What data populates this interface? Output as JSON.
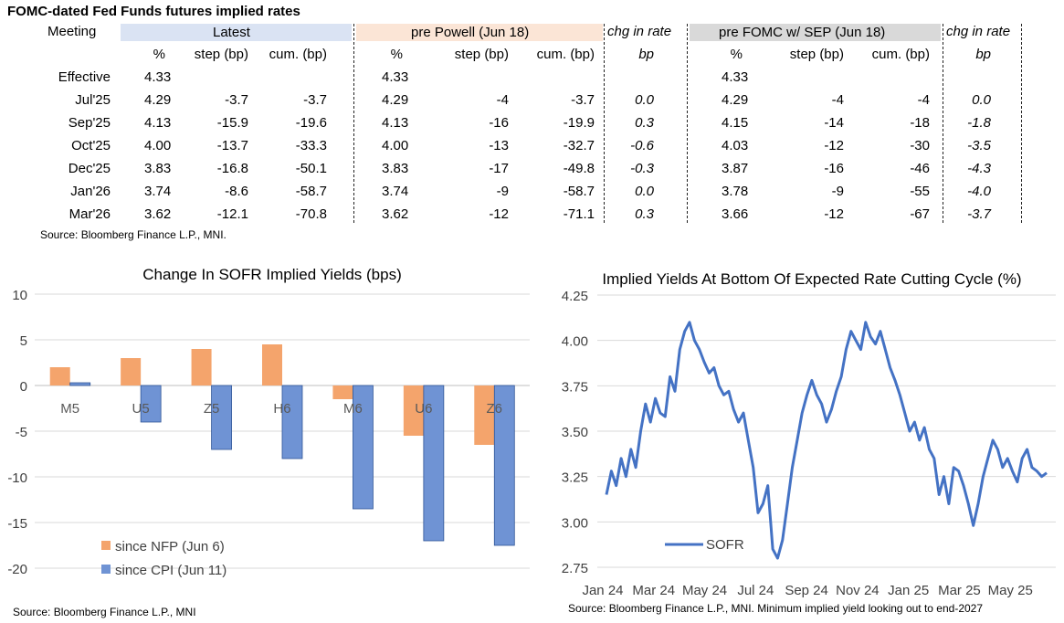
{
  "table": {
    "title": "FOMC-dated Fed Funds futures implied rates",
    "col_meeting": "Meeting",
    "groups": [
      {
        "label": "Latest",
        "color": "#dae3f3"
      },
      {
        "label": "pre Powell (Jun 18)",
        "color": "#fbe5d6"
      },
      {
        "label": "chg in rate",
        "color": "#ffffff"
      },
      {
        "label": "pre FOMC w/ SEP (Jun 18)",
        "color": "#d9d9d9"
      },
      {
        "label": "chg in rate",
        "color": "#ffffff"
      }
    ],
    "subheaders": [
      "%",
      "step (bp)",
      "cum. (bp)",
      "%",
      "step (bp)",
      "cum. (bp)",
      "bp",
      "%",
      "step (bp)",
      "cum. (bp)",
      "bp"
    ],
    "rows": [
      {
        "meeting": "Effective",
        "cells": [
          "4.33",
          "",
          "",
          "4.33",
          "",
          "",
          "",
          "4.33",
          "",
          "",
          ""
        ]
      },
      {
        "meeting": "Jul'25",
        "cells": [
          "4.29",
          "-3.7",
          "-3.7",
          "4.29",
          "-4",
          "-3.7",
          "0.0",
          "4.29",
          "-4",
          "-4",
          "0.0"
        ]
      },
      {
        "meeting": "Sep'25",
        "cells": [
          "4.13",
          "-15.9",
          "-19.6",
          "4.13",
          "-16",
          "-19.9",
          "0.3",
          "4.15",
          "-14",
          "-18",
          "-1.8"
        ]
      },
      {
        "meeting": "Oct'25",
        "cells": [
          "4.00",
          "-13.7",
          "-33.3",
          "4.00",
          "-13",
          "-32.7",
          "-0.6",
          "4.03",
          "-12",
          "-30",
          "-3.5"
        ]
      },
      {
        "meeting": "Dec'25",
        "cells": [
          "3.83",
          "-16.8",
          "-50.1",
          "3.83",
          "-17",
          "-49.8",
          "-0.3",
          "3.87",
          "-16",
          "-46",
          "-4.3"
        ]
      },
      {
        "meeting": "Jan'26",
        "cells": [
          "3.74",
          "-8.6",
          "-58.7",
          "3.74",
          "-9",
          "-58.7",
          "0.0",
          "3.78",
          "-9",
          "-55",
          "-4.0"
        ]
      },
      {
        "meeting": "Mar'26",
        "cells": [
          "3.62",
          "-12.1",
          "-70.8",
          "3.62",
          "-12",
          "-71.1",
          "0.3",
          "3.66",
          "-12",
          "-67",
          "-3.7"
        ]
      }
    ],
    "source": "Source: Bloomberg Finance L.P., MNI."
  },
  "chart_data": [
    {
      "type": "bar",
      "title": "Change In SOFR Implied Yields (bps)",
      "categories": [
        "M5",
        "U5",
        "Z5",
        "H6",
        "M6",
        "U6",
        "Z6"
      ],
      "series": [
        {
          "name": "since NFP (Jun 6)",
          "color": "#f4a46c",
          "values": [
            2.0,
            3.0,
            4.0,
            4.5,
            -1.5,
            -5.5,
            -6.5
          ]
        },
        {
          "name": "since CPI (Jun 11)",
          "color": "#6f93d4",
          "values": [
            0.3,
            -4.0,
            -7.0,
            -8.0,
            -13.5,
            -17.0,
            -17.5
          ]
        }
      ],
      "ylim": [
        -20,
        10
      ],
      "yticks": [
        "10",
        "5",
        "0",
        "-5",
        "-10",
        "-15",
        "-20"
      ],
      "xlabel": "",
      "ylabel": "",
      "source": "Source: Bloomberg Finance L.P., MNI"
    },
    {
      "type": "line",
      "title": "Implied Yields At Bottom Of Expected Rate Cutting Cycle (%)",
      "xticks": [
        "Jan 24",
        "Mar 24",
        "May 24",
        "Jul 24",
        "Sep 24",
        "Nov 24",
        "Jan 25",
        "Mar 25",
        "May 25"
      ],
      "yticks": [
        "4.25",
        "4.00",
        "3.75",
        "3.50",
        "3.25",
        "3.00",
        "2.75"
      ],
      "ylim": [
        2.75,
        4.25
      ],
      "series": [
        {
          "name": "SOFR",
          "color": "#4472c4",
          "x": [
            0,
            0.2,
            0.4,
            0.6,
            0.8,
            1.0,
            1.2,
            1.4,
            1.6,
            1.8,
            2.0,
            2.2,
            2.4,
            2.6,
            2.8,
            3.0,
            3.2,
            3.4,
            3.6,
            3.8,
            4.0,
            4.2,
            4.4,
            4.6,
            4.8,
            5.0,
            5.2,
            5.4,
            5.6,
            5.8,
            6.0,
            6.2,
            6.4,
            6.6,
            6.8,
            7.0,
            7.2,
            7.4,
            7.6,
            7.8,
            8.0,
            8.2,
            8.4,
            8.6,
            8.8,
            9.0,
            9.2,
            9.4,
            9.6,
            9.8,
            10.0,
            10.2,
            10.4,
            10.6,
            10.8,
            11.0,
            11.2,
            11.4,
            11.6,
            11.8,
            12.0,
            12.2,
            12.4,
            12.6,
            12.8,
            13.0,
            13.2,
            13.4,
            13.6,
            13.8,
            14.0,
            14.2,
            14.4,
            14.6,
            14.8,
            15.0,
            15.2,
            15.4,
            15.6,
            15.8,
            16.0,
            16.2,
            16.4,
            16.6,
            16.8,
            17.0,
            17.2,
            17.4,
            17.6,
            17.8,
            18.0
          ],
          "values": [
            3.15,
            3.28,
            3.2,
            3.35,
            3.25,
            3.4,
            3.3,
            3.5,
            3.65,
            3.55,
            3.68,
            3.6,
            3.58,
            3.8,
            3.72,
            3.95,
            4.05,
            4.1,
            4.0,
            3.95,
            3.88,
            3.82,
            3.85,
            3.75,
            3.7,
            3.72,
            3.62,
            3.55,
            3.6,
            3.45,
            3.3,
            3.05,
            3.1,
            3.2,
            2.85,
            2.8,
            2.9,
            3.1,
            3.3,
            3.45,
            3.6,
            3.7,
            3.78,
            3.7,
            3.65,
            3.55,
            3.62,
            3.72,
            3.8,
            3.95,
            4.05,
            4.0,
            3.95,
            4.1,
            4.02,
            3.98,
            4.05,
            3.95,
            3.85,
            3.78,
            3.7,
            3.6,
            3.5,
            3.55,
            3.45,
            3.52,
            3.4,
            3.35,
            3.15,
            3.25,
            3.1,
            3.3,
            3.28,
            3.2,
            3.1,
            2.98,
            3.1,
            3.25,
            3.35,
            3.45,
            3.4,
            3.3,
            3.35,
            3.28,
            3.22,
            3.35,
            3.4,
            3.3,
            3.28,
            3.25,
            3.27
          ]
        }
      ],
      "source": "Source: Bloomberg Finance L.P., MNI. Minimum implied yield looking out to end-2027"
    }
  ]
}
